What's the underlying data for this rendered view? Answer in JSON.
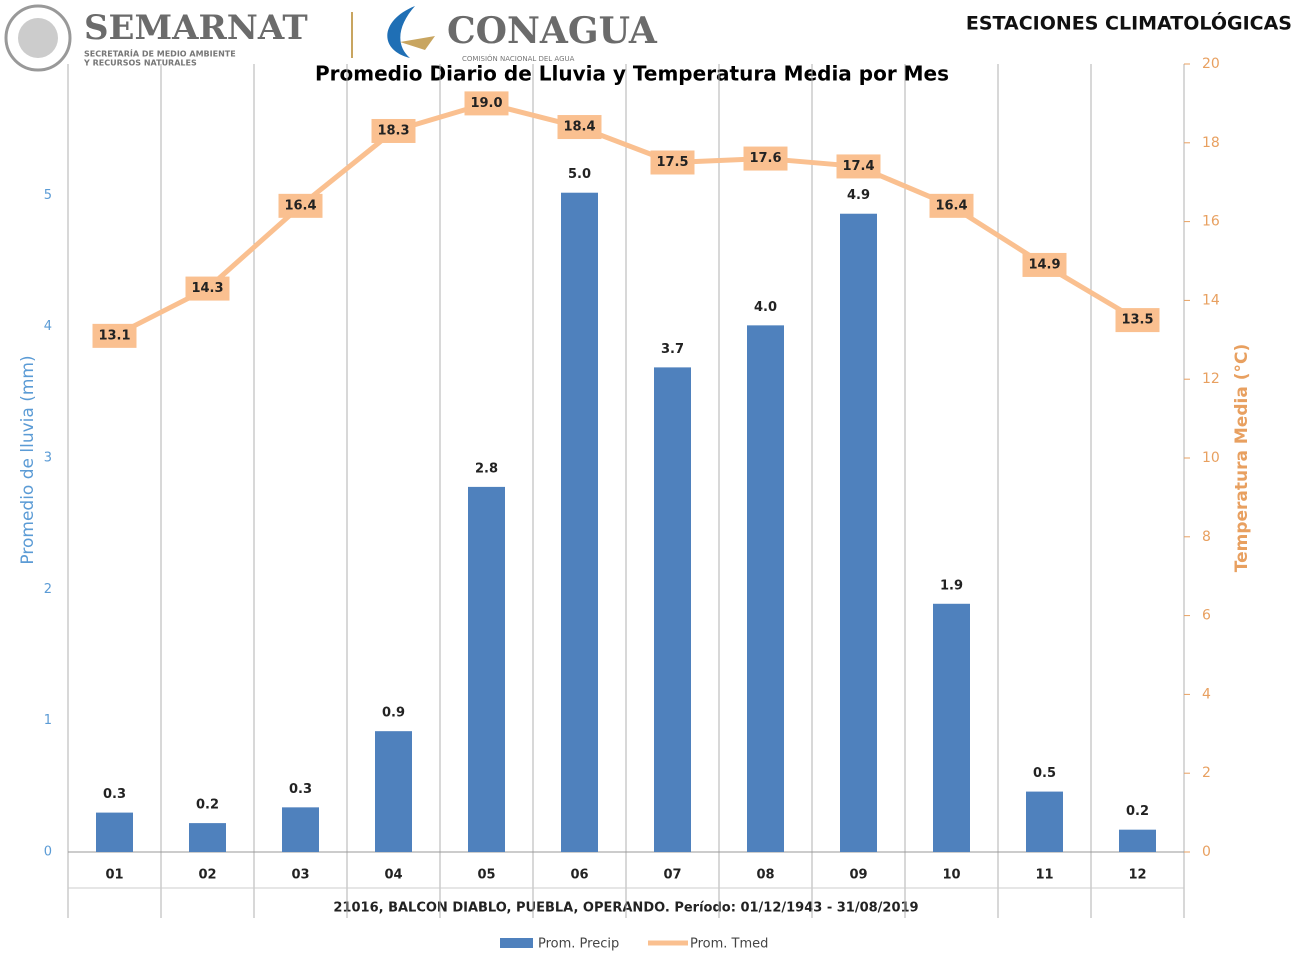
{
  "header": {
    "semarnat": "SEMARNAT",
    "semarnat_sub1": "SECRETARÍA DE MEDIO AMBIENTE",
    "semarnat_sub2": "Y RECURSOS NATURALES",
    "conagua": "CONAGUA",
    "conagua_sub": "COMISIÓN NACIONAL DEL AGUA",
    "right_title": "ESTACIONES CLIMATOLÓGICAS"
  },
  "chart_data": {
    "type": "bar",
    "title": "Promedio Diario de Lluvia y Temperatura Media por Mes",
    "ylabel": "Promedio de lluvia (mm)",
    "y2label": "Temperatura Media (°C)",
    "annotation": "21016, BALCON DIABLO, PUEBLA, OPERANDO. Período: 01/12/1943 - 31/08/2019",
    "categories": [
      "01",
      "02",
      "03",
      "04",
      "05",
      "06",
      "07",
      "08",
      "09",
      "10",
      "11",
      "12"
    ],
    "series": [
      {
        "name": "Prom. Precip",
        "type": "bar",
        "color": "#4f81bd",
        "values": [
          0.3,
          0.22,
          0.34,
          0.92,
          2.78,
          5.02,
          3.69,
          4.01,
          4.86,
          1.89,
          0.46,
          0.17
        ],
        "value_labels": [
          "0.3",
          "0.2",
          "0.3",
          "0.9",
          "2.8",
          "5.0",
          "3.7",
          "4.0",
          "4.9",
          "1.9",
          "0.5",
          "0.2"
        ]
      },
      {
        "name": "Prom. Tmed",
        "type": "line",
        "axis": "y2",
        "color": "#fac090",
        "values": [
          13.1,
          14.3,
          16.4,
          18.3,
          19.0,
          18.4,
          17.5,
          17.6,
          17.4,
          16.4,
          14.9,
          13.5
        ],
        "value_labels": [
          "13.1",
          "14.3",
          "16.4",
          "18.3",
          "19.0",
          "18.4",
          "17.5",
          "17.6",
          "17.4",
          "16.4",
          "14.9",
          "13.5"
        ]
      }
    ],
    "ylim": [
      0,
      6
    ],
    "yticks": [
      0,
      1,
      2,
      3,
      4,
      5
    ],
    "y2lim": [
      0,
      20
    ],
    "y2ticks": [
      0,
      2,
      4,
      6,
      8,
      10,
      12,
      14,
      16,
      18,
      20
    ],
    "grid": false,
    "legend": "bottom"
  }
}
